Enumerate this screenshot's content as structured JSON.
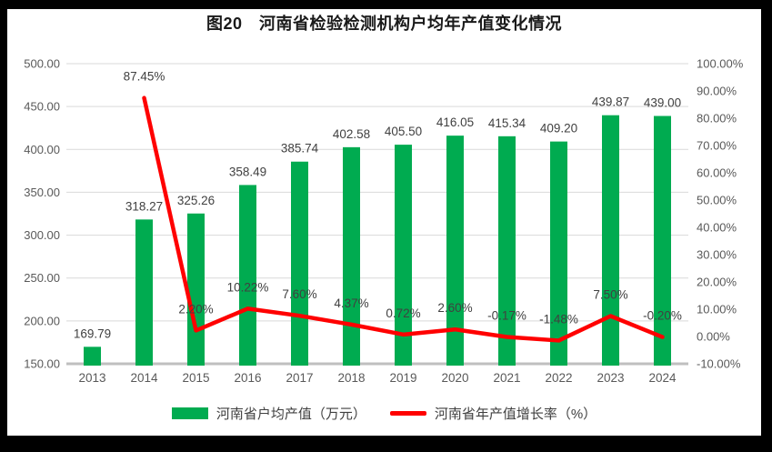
{
  "title": "图20　河南省检验检测机构户均年产值变化情况",
  "colors": {
    "bar": "#00AB50",
    "line": "#FF0000",
    "grid": "#D9D9D9",
    "axis_line": "#BFBFBF",
    "tick_text": "#595959",
    "label_text": "#404040",
    "frame_bg": "#000000",
    "panel_bg": "#FFFFFF"
  },
  "chart_data": {
    "type": "bar+line combo",
    "categories": [
      "2013",
      "2014",
      "2015",
      "2016",
      "2017",
      "2018",
      "2019",
      "2020",
      "2021",
      "2022",
      "2023",
      "2024"
    ],
    "series": [
      {
        "name": "河南省户均产值（万元）",
        "type": "bar",
        "axis": "left",
        "values": [
          169.79,
          318.27,
          325.26,
          358.49,
          385.74,
          402.58,
          405.5,
          416.05,
          415.34,
          409.2,
          439.87,
          439.0
        ],
        "labels": [
          "169.79",
          "318.27",
          "325.26",
          "358.49",
          "385.74",
          "402.58",
          "405.50",
          "416.05",
          "415.34",
          "409.20",
          "439.87",
          "439.00"
        ]
      },
      {
        "name": "河南省年产值增长率（%）",
        "type": "line",
        "axis": "right",
        "values": [
          null,
          87.45,
          2.2,
          10.22,
          7.6,
          4.37,
          0.72,
          2.6,
          -0.17,
          -1.48,
          7.5,
          -0.2
        ],
        "labels": [
          "",
          "87.45%",
          "2.20%",
          "10.22%",
          "7.60%",
          "4.37%",
          "0.72%",
          "2.60%",
          "-0.17%",
          "-1.48%",
          "7.50%",
          "-0.20%"
        ]
      }
    ],
    "left_axis": {
      "min": 150,
      "max": 500,
      "step": 50,
      "tick_labels": [
        "150.00",
        "200.00",
        "250.00",
        "300.00",
        "350.00",
        "400.00",
        "450.00",
        "500.00"
      ]
    },
    "right_axis": {
      "min": -10,
      "max": 100,
      "step": 10,
      "tick_labels": [
        "-10.00%",
        "0.00%",
        "10.00%",
        "20.00%",
        "30.00%",
        "40.00%",
        "50.00%",
        "60.00%",
        "70.00%",
        "80.00%",
        "90.00%",
        "100.00%"
      ]
    },
    "grid": true,
    "legend_position": "bottom"
  }
}
